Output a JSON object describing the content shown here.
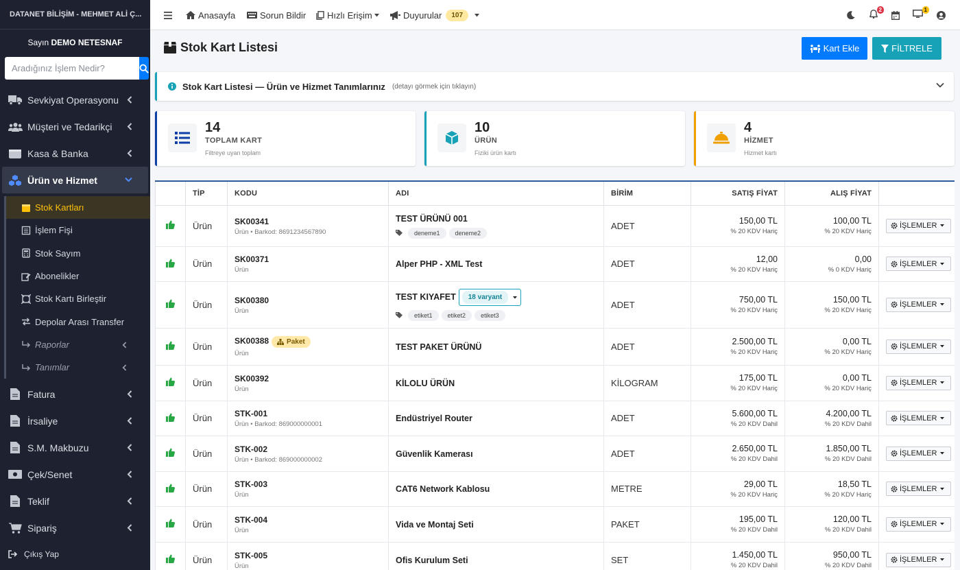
{
  "sidebar": {
    "brand": "DATANET BİLİŞİM - MEHMET ALİ Ç...",
    "user_prefix": "Sayın",
    "user_name": "DEMO NETESNAF",
    "search_placeholder": "Aradığınız İşlem Nedir?",
    "items": [
      {
        "label": "Sevkiyat Operasyonu",
        "icon": "truck-icon"
      },
      {
        "label": "Müşteri ve Tedarikçi",
        "icon": "users-icon"
      },
      {
        "label": "Kasa & Banka",
        "icon": "wallet-icon"
      },
      {
        "label": "Ürün ve Hizmet",
        "icon": "cubes-icon"
      }
    ],
    "subitems": [
      {
        "label": "Stok Kartları",
        "icon": "box-icon"
      },
      {
        "label": "İşlem Fişi",
        "icon": "receipt-icon"
      },
      {
        "label": "Stok Sayım",
        "icon": "calculator-icon"
      },
      {
        "label": "Abonelikler",
        "icon": "edit-icon"
      },
      {
        "label": "Stok Kartı Birleştir",
        "icon": "merge-icon"
      },
      {
        "label": "Depolar Arası Transfer",
        "icon": "exchange-icon"
      },
      {
        "label": "Raporlar",
        "icon": "arrow-turn-icon"
      },
      {
        "label": "Tanımlar",
        "icon": "arrow-turn-icon"
      }
    ],
    "items2": [
      {
        "label": "Fatura",
        "icon": "file-icon"
      },
      {
        "label": "İrsaliye",
        "icon": "file-icon"
      },
      {
        "label": "S.M. Makbuzu",
        "icon": "file-icon"
      },
      {
        "label": "Çek/Senet",
        "icon": "money-icon"
      },
      {
        "label": "Teklif",
        "icon": "file-icon"
      },
      {
        "label": "Sipariş",
        "icon": "cart-icon"
      }
    ],
    "logout": "Çıkış Yap"
  },
  "topbar": {
    "home": "Anasayfa",
    "report": "Sorun Bildir",
    "quick": "Hızlı Erişim",
    "announcements": "Duyurular",
    "announcement_count": "107",
    "notif_count": "2",
    "screen_count": "1"
  },
  "page": {
    "title": "Stok Kart Listesi",
    "add_button": "Kart Ekle",
    "filter_button": "FİLTRELE",
    "info_title": "Stok Kart Listesi — Ürün ve Hizmet Tanımlarınız",
    "info_sub": "(detayı görmek için tıklayın)"
  },
  "stats": [
    {
      "num": "14",
      "label": "TOPLAM KART",
      "sub": "Filtreye uyan toplam",
      "color": "#0d3fa6"
    },
    {
      "num": "10",
      "label": "ÜRÜN",
      "sub": "Fiziki ürün kartı",
      "color": "#17a2b8"
    },
    {
      "num": "4",
      "label": "HİZMET",
      "sub": "Hizmet kartı",
      "color": "#f0a000"
    }
  ],
  "table": {
    "headers": [
      "",
      "TİP",
      "KODU",
      "ADI",
      "BİRİM",
      "SATIŞ FİYAT",
      "ALIŞ FİYAT",
      ""
    ],
    "ops_label": "İŞLEMLER",
    "rows": [
      {
        "tip": "Ürün",
        "code": "SK00341",
        "code_sub": "Ürün • Barkod: 8691234567890",
        "name": "TEST ÜRÜNÜ 001",
        "tags": [
          "deneme1",
          "deneme2"
        ],
        "unit": "ADET",
        "sale": "150,00 TL",
        "sale_kdv": "% 20 KDV Hariç",
        "buy": "100,00 TL",
        "buy_kdv": "% 20 KDV Hariç"
      },
      {
        "tip": "Ürün",
        "code": "SK00371",
        "code_sub": "Ürün",
        "name": "Alper PHP - XML Test",
        "tags": [],
        "unit": "ADET",
        "sale": "12,00",
        "sale_kdv": "% 20 KDV Hariç",
        "buy": "0,00",
        "buy_kdv": "% 0 KDV Hariç"
      },
      {
        "tip": "Ürün",
        "code": "SK00380",
        "code_sub": "Ürün",
        "name": "TEST KIYAFET",
        "variant": "18 varyant",
        "tags": [
          "etiket1",
          "etiket2",
          "etiket3"
        ],
        "unit": "ADET",
        "sale": "750,00 TL",
        "sale_kdv": "% 20 KDV Hariç",
        "buy": "150,00 TL",
        "buy_kdv": "% 20 KDV Hariç"
      },
      {
        "tip": "Ürün",
        "code": "SK00388",
        "code_badge": "Paket",
        "code_sub": "Ürün",
        "name": "TEST PAKET ÜRÜNÜ",
        "tags": [],
        "unit": "ADET",
        "sale": "2.500,00 TL",
        "sale_kdv": "% 20 KDV Hariç",
        "buy": "0,00 TL",
        "buy_kdv": "% 20 KDV Hariç"
      },
      {
        "tip": "Ürün",
        "code": "SK00392",
        "code_sub": "Ürün",
        "name": "KİLOLU ÜRÜN",
        "tags": [],
        "unit": "KİLOGRAM",
        "sale": "175,00 TL",
        "sale_kdv": "% 20 KDV Hariç",
        "buy": "0,00 TL",
        "buy_kdv": "% 20 KDV Hariç"
      },
      {
        "tip": "Ürün",
        "code": "STK-001",
        "code_sub": "Ürün • Barkod: 869000000001",
        "name": "Endüstriyel Router",
        "tags": [],
        "unit": "ADET",
        "sale": "5.600,00 TL",
        "sale_kdv": "% 20 KDV Dahil",
        "buy": "4.200,00 TL",
        "buy_kdv": "% 20 KDV Dahil"
      },
      {
        "tip": "Ürün",
        "code": "STK-002",
        "code_sub": "Ürün • Barkod: 869000000002",
        "name": "Güvenlik Kamerası",
        "tags": [],
        "unit": "ADET",
        "sale": "2.650,00 TL",
        "sale_kdv": "% 20 KDV Dahil",
        "buy": "1.850,00 TL",
        "buy_kdv": "% 20 KDV Dahil"
      },
      {
        "tip": "Ürün",
        "code": "STK-003",
        "code_sub": "Ürün",
        "name": "CAT6 Network Kablosu",
        "tags": [],
        "unit": "METRE",
        "sale": "29,00 TL",
        "sale_kdv": "% 20 KDV Hariç",
        "buy": "18,50 TL",
        "buy_kdv": "% 20 KDV Hariç"
      },
      {
        "tip": "Ürün",
        "code": "STK-004",
        "code_sub": "Ürün",
        "name": "Vida ve Montaj Seti",
        "tags": [],
        "unit": "PAKET",
        "sale": "195,00 TL",
        "sale_kdv": "% 20 KDV Dahil",
        "buy": "120,00 TL",
        "buy_kdv": "% 20 KDV Dahil"
      },
      {
        "tip": "Ürün",
        "code": "STK-005",
        "code_sub": "Ürün",
        "name": "Ofis Kurulum Seti",
        "tags": [],
        "unit": "SET",
        "sale": "1.450,00 TL",
        "sale_kdv": "% 20 KDV Dahil",
        "buy": "950,00 TL",
        "buy_kdv": "% 20 KDV Dahil"
      }
    ]
  }
}
